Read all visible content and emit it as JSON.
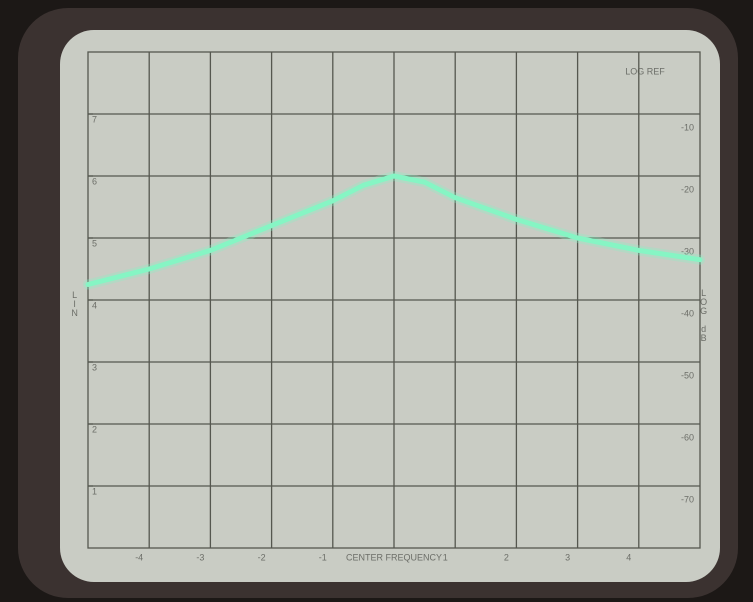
{
  "chart_data": {
    "type": "line",
    "ref_label": "LOG REF",
    "ylabel": "LOG dB",
    "y2label": "LIN",
    "x": [
      -5,
      -4,
      -3,
      -2,
      -1,
      -0.5,
      0,
      0.5,
      1,
      2,
      3,
      4,
      5
    ],
    "series": [
      {
        "color": "#86f5c4",
        "values": [
          -37.5,
          -35,
          -32,
          -28,
          -24,
          -21.5,
          -20,
          -21,
          -23.5,
          -27,
          -30,
          -32,
          -33.5
        ]
      }
    ],
    "xlim": [
      -5,
      5
    ],
    "xticks": [
      -4,
      -3,
      -2,
      -1,
      {
        "value": 0,
        "label": "CENTER FREQUENCY"
      },
      1,
      2,
      3,
      4
    ],
    "ylim": [
      -80,
      0
    ],
    "yticks": [
      -10,
      -20,
      -30,
      -40,
      -50,
      -60,
      -70
    ],
    "y2lim": [
      0,
      8
    ],
    "y2ticks": [
      7,
      6,
      5,
      4,
      3,
      2,
      1
    ],
    "grid": true
  }
}
